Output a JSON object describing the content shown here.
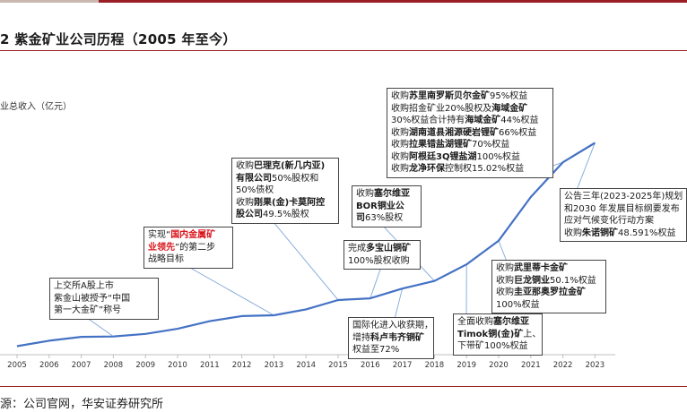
{
  "page": {
    "title": "2 紫金矿业公司历程（2005 年至今）",
    "ylabel": "业总收入（亿元）",
    "source": "源：公司官网，华安证券研究所"
  },
  "colors": {
    "line": "#4472c4",
    "accent": "#9a1f24",
    "callout_line": "#7fa7d9",
    "highlight": "#d9141b"
  },
  "chart_data": {
    "type": "line",
    "title": "",
    "xlabel": "",
    "ylabel": "业总收入（亿元）",
    "categories": [
      "2005",
      "2006",
      "2007",
      "2008",
      "2009",
      "2010",
      "2011",
      "2012",
      "2013",
      "2014",
      "2015",
      "2016",
      "2017",
      "2018",
      "2019",
      "2020",
      "2021",
      "2022",
      "2023"
    ],
    "series": [
      {
        "values": [
          100,
          165,
          210,
          215,
          245,
          305,
          395,
          455,
          465,
          535,
          645,
          665,
          780,
          870,
          1065,
          1345,
          1860,
          2270,
          2500
        ]
      }
    ],
    "ylim": [
      0,
      2600
    ],
    "grid": false,
    "legend": "none"
  },
  "annotations": [
    {
      "lines": [
        "上交所A股上市",
        "紫金山被授予“中国",
        "第一大金矿”称号"
      ]
    },
    {
      "l1_a": "实现“",
      "l1_b": "国内金属矿",
      "l2_a": "业领先",
      "l2_b": "”的第二步",
      "l3": "战略目标"
    },
    {
      "l1_a": "收购",
      "l1_b": "巴理克(新几内亚)",
      "l2_a": "有限公司",
      "l2_b": "50%股权和",
      "l3": "50%债权",
      "l4_a": "收购",
      "l4_b": "刚果(金)卡莫阿控",
      "l5_a": "股公司",
      "l5_b": "49.5%股权"
    },
    {
      "l1_a": "收购",
      "l1_b": "塞尔维亚",
      "l2": "BOR铜业公",
      "l3_a": "司",
      "l3_b": "63%股权"
    },
    {
      "l1_a": "完成",
      "l1_b": "多宝山铜矿",
      "l2": "100%股权收购"
    },
    {
      "l1": "国际化进入收获期，",
      "l2_a": "增持",
      "l2_b": "科卢韦齐铜矿",
      "l3": "权益至72%"
    },
    {
      "l1_a": "全面收购",
      "l1_b": "塞尔维亚",
      "l2_a": "Timok铜(金)矿",
      "l2_b": "上、",
      "l3": "下带矿100%权益"
    },
    {
      "l1_a": "收购",
      "l1_b": "武里蒂卡金矿",
      "l2_a": "收购",
      "l2_b": "巨龙铜业",
      "l2_c": "50.1%权益",
      "l3_a": "收购",
      "l3_b": "圭亚那奥罗拉金矿",
      "l4": "100%权益"
    },
    {
      "l1_a": "收购",
      "l1_b": "苏里南罗斯贝尔金矿",
      "l1_c": "95%权益",
      "l2_a": "收购招金矿业20%股权及",
      "l2_b": "海域金矿",
      "l3_a": "30%权益合计持有",
      "l3_b": "海域金矿",
      "l3_c": "44%权益",
      "l4_a": "收购",
      "l4_b": "湖南道县湘源硬岩锂矿",
      "l4_c": "66%权益",
      "l5_a": "收购",
      "l5_b": "拉果错盐湖锂矿",
      "l5_c": "70%权益",
      "l6_a": "收购",
      "l6_b": "阿根廷3Q锂盐湖",
      "l6_c": "100%权益",
      "l7_a": "收购",
      "l7_b": "龙净环保",
      "l7_c": "控制权15.02%权益"
    },
    {
      "l1": "公告三年(2023-2025年)规划",
      "l2": "和2030 年发展目标纲要发布",
      "l3": "应对气候变化行动方案",
      "l4_a": "收购",
      "l4_b": "朱诺铜矿",
      "l4_c": "48.591%权益"
    }
  ]
}
